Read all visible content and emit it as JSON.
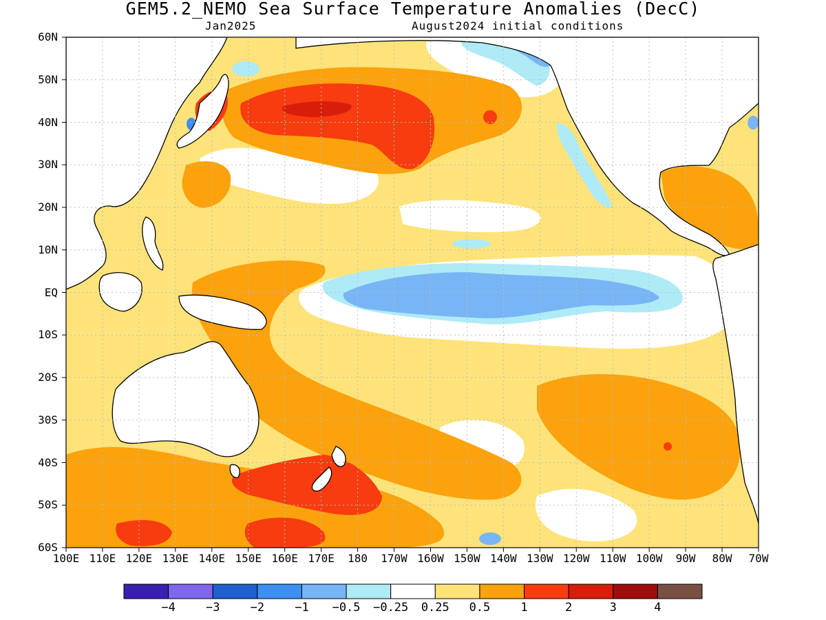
{
  "title": "GEM5.2_NEMO Sea Surface Temperature Anomalies (DecC)",
  "subtitle_left": "Jan2025",
  "subtitle_right": "August2024 initial conditions",
  "lat_labels": [
    "60N",
    "50N",
    "40N",
    "30N",
    "20N",
    "10N",
    "EQ",
    "10S",
    "20S",
    "30S",
    "40S",
    "50S",
    "60S"
  ],
  "lon_labels": [
    "100E",
    "110E",
    "120E",
    "130E",
    "140E",
    "150E",
    "160E",
    "170E",
    "180",
    "170W",
    "160W",
    "150W",
    "140W",
    "130W",
    "120W",
    "110W",
    "100W",
    "90W",
    "80W",
    "70W"
  ],
  "colorbar": {
    "colors": [
      "#3a1fb0",
      "#7f66ea",
      "#1f5fcf",
      "#3d8ff0",
      "#78b5f5",
      "#aeebf7",
      "#ffffff",
      "#fde37a",
      "#fba20c",
      "#f73c10",
      "#d81e0a",
      "#9f0d0d",
      "#7a5044"
    ],
    "labels": [
      "−4",
      "−3",
      "−2",
      "−1",
      "−0.5",
      "−0.25",
      "0.25",
      "0.5",
      "1",
      "2",
      "3",
      "4"
    ]
  },
  "palette": {
    "land": "#ffffff",
    "coast": "#000000",
    "grid": "#bdbdbd"
  }
}
